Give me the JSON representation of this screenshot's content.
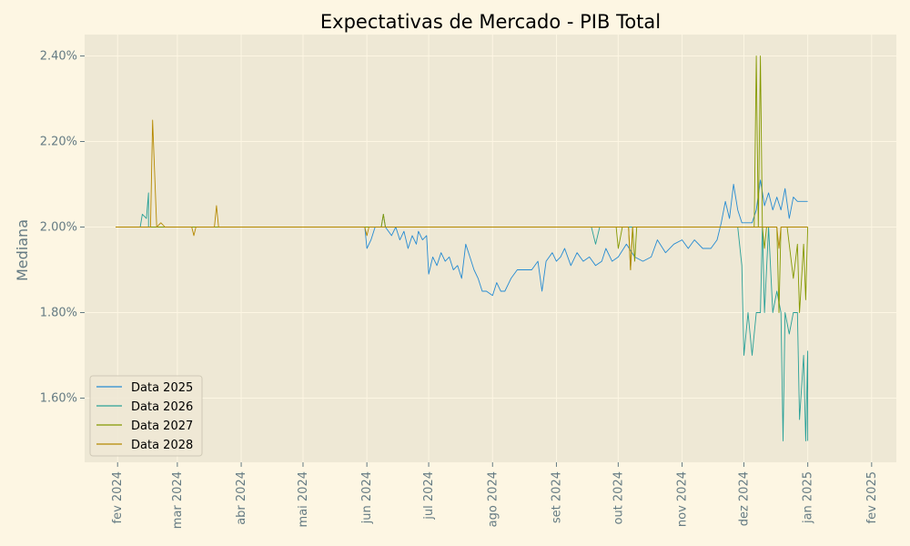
{
  "chart_data": {
    "type": "line",
    "title": "Expectativas de Mercado - PIB Total",
    "xlabel": "",
    "ylabel": "Mediana",
    "x_axis_type": "date",
    "xlim": [
      "2024-01-16",
      "2025-02-13"
    ],
    "ylim": [
      1.45,
      2.45
    ],
    "x_ticks": [
      {
        "date": "2024-02-01",
        "label": "fev 2024"
      },
      {
        "date": "2024-03-01",
        "label": "mar 2024"
      },
      {
        "date": "2024-04-01",
        "label": "abr 2024"
      },
      {
        "date": "2024-05-01",
        "label": "mai 2024"
      },
      {
        "date": "2024-06-01",
        "label": "jun 2024"
      },
      {
        "date": "2024-07-01",
        "label": "jul 2024"
      },
      {
        "date": "2024-08-01",
        "label": "ago 2024"
      },
      {
        "date": "2024-09-01",
        "label": "set 2024"
      },
      {
        "date": "2024-10-01",
        "label": "out 2024"
      },
      {
        "date": "2024-11-01",
        "label": "nov 2024"
      },
      {
        "date": "2024-12-01",
        "label": "dez 2024"
      },
      {
        "date": "2025-01-01",
        "label": "jan 2025"
      },
      {
        "date": "2025-02-01",
        "label": "fev 2025"
      }
    ],
    "y_ticks": [
      {
        "value": 1.6,
        "label": "1.60%"
      },
      {
        "value": 1.8,
        "label": "1.80%"
      },
      {
        "value": 2.0,
        "label": "2.00%"
      },
      {
        "value": 2.2,
        "label": "2.20%"
      },
      {
        "value": 2.4,
        "label": "2.40%"
      }
    ],
    "grid": true,
    "legend": "lower-left",
    "series": [
      {
        "name": "Data 2025",
        "color": "#268bd2",
        "points": [
          [
            "2024-01-31",
            2.0
          ],
          [
            "2024-05-31",
            2.0
          ],
          [
            "2024-06-01",
            1.95
          ],
          [
            "2024-06-03",
            1.97
          ],
          [
            "2024-06-05",
            2.0
          ],
          [
            "2024-06-08",
            2.0
          ],
          [
            "2024-06-09",
            2.03
          ],
          [
            "2024-06-10",
            2.0
          ],
          [
            "2024-06-13",
            1.98
          ],
          [
            "2024-06-15",
            2.0
          ],
          [
            "2024-06-17",
            1.97
          ],
          [
            "2024-06-19",
            1.99
          ],
          [
            "2024-06-21",
            1.95
          ],
          [
            "2024-06-23",
            1.98
          ],
          [
            "2024-06-25",
            1.96
          ],
          [
            "2024-06-26",
            1.99
          ],
          [
            "2024-06-28",
            1.97
          ],
          [
            "2024-06-30",
            1.98
          ],
          [
            "2024-07-01",
            1.89
          ],
          [
            "2024-07-03",
            1.93
          ],
          [
            "2024-07-05",
            1.91
          ],
          [
            "2024-07-07",
            1.94
          ],
          [
            "2024-07-09",
            1.92
          ],
          [
            "2024-07-11",
            1.93
          ],
          [
            "2024-07-13",
            1.9
          ],
          [
            "2024-07-15",
            1.91
          ],
          [
            "2024-07-17",
            1.88
          ],
          [
            "2024-07-19",
            1.96
          ],
          [
            "2024-07-21",
            1.93
          ],
          [
            "2024-07-23",
            1.9
          ],
          [
            "2024-07-25",
            1.88
          ],
          [
            "2024-07-27",
            1.85
          ],
          [
            "2024-07-29",
            1.85
          ],
          [
            "2024-08-01",
            1.84
          ],
          [
            "2024-08-03",
            1.87
          ],
          [
            "2024-08-05",
            1.85
          ],
          [
            "2024-08-07",
            1.85
          ],
          [
            "2024-08-10",
            1.88
          ],
          [
            "2024-08-13",
            1.9
          ],
          [
            "2024-08-17",
            1.9
          ],
          [
            "2024-08-20",
            1.9
          ],
          [
            "2024-08-23",
            1.92
          ],
          [
            "2024-08-25",
            1.85
          ],
          [
            "2024-08-27",
            1.92
          ],
          [
            "2024-08-30",
            1.94
          ],
          [
            "2024-09-01",
            1.92
          ],
          [
            "2024-09-03",
            1.93
          ],
          [
            "2024-09-05",
            1.95
          ],
          [
            "2024-09-08",
            1.91
          ],
          [
            "2024-09-11",
            1.94
          ],
          [
            "2024-09-14",
            1.92
          ],
          [
            "2024-09-17",
            1.93
          ],
          [
            "2024-09-20",
            1.91
          ],
          [
            "2024-09-23",
            1.92
          ],
          [
            "2024-09-25",
            1.95
          ],
          [
            "2024-09-28",
            1.92
          ],
          [
            "2024-10-01",
            1.93
          ],
          [
            "2024-10-05",
            1.96
          ],
          [
            "2024-10-09",
            1.93
          ],
          [
            "2024-10-13",
            1.92
          ],
          [
            "2024-10-17",
            1.93
          ],
          [
            "2024-10-20",
            1.97
          ],
          [
            "2024-10-24",
            1.94
          ],
          [
            "2024-10-28",
            1.96
          ],
          [
            "2024-11-01",
            1.97
          ],
          [
            "2024-11-04",
            1.95
          ],
          [
            "2024-11-07",
            1.97
          ],
          [
            "2024-11-11",
            1.95
          ],
          [
            "2024-11-15",
            1.95
          ],
          [
            "2024-11-18",
            1.97
          ],
          [
            "2024-11-20",
            2.01
          ],
          [
            "2024-11-22",
            2.06
          ],
          [
            "2024-11-24",
            2.02
          ],
          [
            "2024-11-26",
            2.1
          ],
          [
            "2024-11-28",
            2.04
          ],
          [
            "2024-11-30",
            2.01
          ],
          [
            "2024-12-03",
            2.01
          ],
          [
            "2024-12-05",
            2.01
          ],
          [
            "2024-12-07",
            2.04
          ],
          [
            "2024-12-09",
            2.11
          ],
          [
            "2024-12-11",
            2.05
          ],
          [
            "2024-12-13",
            2.08
          ],
          [
            "2024-12-15",
            2.04
          ],
          [
            "2024-12-17",
            2.07
          ],
          [
            "2024-12-19",
            2.04
          ],
          [
            "2024-12-21",
            2.09
          ],
          [
            "2024-12-23",
            2.02
          ],
          [
            "2024-12-25",
            2.07
          ],
          [
            "2024-12-27",
            2.06
          ],
          [
            "2024-12-30",
            2.06
          ],
          [
            "2025-01-01",
            2.06
          ]
        ]
      },
      {
        "name": "Data 2026",
        "color": "#2aa198",
        "points": [
          [
            "2024-01-31",
            2.0
          ],
          [
            "2024-02-12",
            2.0
          ],
          [
            "2024-02-13",
            2.03
          ],
          [
            "2024-02-15",
            2.02
          ],
          [
            "2024-02-16",
            2.08
          ],
          [
            "2024-02-16",
            2.0
          ],
          [
            "2024-09-18",
            2.0
          ],
          [
            "2024-09-20",
            1.96
          ],
          [
            "2024-09-22",
            2.0
          ],
          [
            "2024-11-28",
            2.0
          ],
          [
            "2024-11-30",
            1.91
          ],
          [
            "2024-12-01",
            1.7
          ],
          [
            "2024-12-03",
            1.8
          ],
          [
            "2024-12-05",
            1.7
          ],
          [
            "2024-12-07",
            1.8
          ],
          [
            "2024-12-09",
            1.8
          ],
          [
            "2024-12-10",
            2.0
          ],
          [
            "2024-12-11",
            1.8
          ],
          [
            "2024-12-13",
            2.0
          ],
          [
            "2024-12-15",
            1.8
          ],
          [
            "2024-12-17",
            1.85
          ],
          [
            "2024-12-19",
            1.8
          ],
          [
            "2024-12-20",
            1.5
          ],
          [
            "2024-12-21",
            1.8
          ],
          [
            "2024-12-23",
            1.75
          ],
          [
            "2024-12-25",
            1.8
          ],
          [
            "2024-12-27",
            1.8
          ],
          [
            "2024-12-28",
            1.55
          ],
          [
            "2024-12-30",
            1.7
          ],
          [
            "2024-12-31",
            1.5
          ],
          [
            "2025-01-01",
            1.71
          ],
          [
            "2025-01-01",
            1.5
          ]
        ]
      },
      {
        "name": "Data 2027",
        "color": "#859900",
        "points": [
          [
            "2024-01-31",
            2.0
          ],
          [
            "2024-06-08",
            2.0
          ],
          [
            "2024-06-09",
            2.03
          ],
          [
            "2024-06-10",
            2.0
          ],
          [
            "2024-09-30",
            2.0
          ],
          [
            "2024-10-01",
            1.95
          ],
          [
            "2024-10-03",
            2.0
          ],
          [
            "2024-10-06",
            2.0
          ],
          [
            "2024-10-07",
            1.9
          ],
          [
            "2024-10-08",
            2.0
          ],
          [
            "2024-10-09",
            1.92
          ],
          [
            "2024-10-10",
            2.0
          ],
          [
            "2024-12-06",
            2.0
          ],
          [
            "2024-12-07",
            2.4
          ],
          [
            "2024-12-08",
            2.0
          ],
          [
            "2024-12-09",
            2.4
          ],
          [
            "2024-12-10",
            2.0
          ],
          [
            "2024-12-11",
            1.95
          ],
          [
            "2024-12-12",
            2.0
          ],
          [
            "2024-12-17",
            2.0
          ],
          [
            "2024-12-18",
            1.8
          ],
          [
            "2024-12-19",
            2.0
          ],
          [
            "2024-12-22",
            2.0
          ],
          [
            "2024-12-25",
            1.88
          ],
          [
            "2024-12-27",
            1.96
          ],
          [
            "2024-12-28",
            1.8
          ],
          [
            "2024-12-30",
            1.96
          ],
          [
            "2024-12-31",
            1.83
          ],
          [
            "2025-01-01",
            2.0
          ]
        ]
      },
      {
        "name": "Data 2028",
        "color": "#b58900",
        "points": [
          [
            "2024-01-31",
            2.0
          ],
          [
            "2024-02-17",
            2.0
          ],
          [
            "2024-02-18",
            2.25
          ],
          [
            "2024-02-20",
            2.0
          ],
          [
            "2024-02-22",
            2.01
          ],
          [
            "2024-02-24",
            2.0
          ],
          [
            "2024-03-08",
            2.0
          ],
          [
            "2024-03-09",
            1.98
          ],
          [
            "2024-03-10",
            2.0
          ],
          [
            "2024-03-19",
            2.0
          ],
          [
            "2024-03-20",
            2.05
          ],
          [
            "2024-03-21",
            2.0
          ],
          [
            "2024-05-31",
            2.0
          ],
          [
            "2024-06-01",
            1.98
          ],
          [
            "2024-06-02",
            2.0
          ],
          [
            "2024-10-06",
            2.0
          ],
          [
            "2024-10-07",
            1.9
          ],
          [
            "2024-10-08",
            2.0
          ],
          [
            "2024-10-10",
            2.0
          ],
          [
            "2024-12-17",
            2.0
          ],
          [
            "2024-12-18",
            1.95
          ],
          [
            "2024-12-19",
            2.0
          ],
          [
            "2025-01-01",
            2.0
          ]
        ]
      }
    ]
  }
}
